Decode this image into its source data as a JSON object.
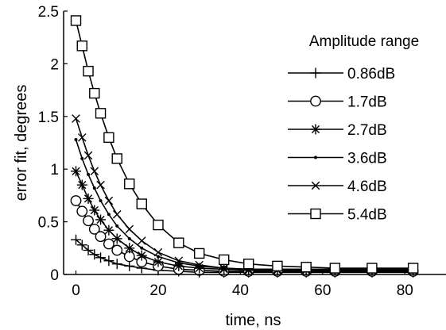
{
  "chart_data": {
    "type": "line",
    "title": "",
    "xlabel": "time, ns",
    "ylabel": "error fit, degrees",
    "xlim": [
      -3,
      90
    ],
    "ylim": [
      0,
      2.5
    ],
    "xticks": [
      0,
      20,
      40,
      60,
      80
    ],
    "yticks": [
      0,
      0.5,
      1,
      1.5,
      2,
      2.5
    ],
    "xtick_labels": [
      "0",
      "20",
      "40",
      "60",
      "80"
    ],
    "ytick_labels": [
      "0",
      "0.5",
      "1",
      "1.5",
      "2",
      "2.5"
    ],
    "grid": false,
    "legend": {
      "title": "Amplitude range",
      "placement": "top-right"
    },
    "colors": {
      "line": "#000000",
      "background": "#ffffff"
    },
    "series": [
      {
        "name": "0.86dB",
        "marker": "plus",
        "x": [
          0,
          1.5,
          3,
          4.5,
          6,
          8,
          10,
          13,
          16,
          20,
          25,
          30,
          36,
          42,
          49,
          56,
          63,
          72,
          82
        ],
        "y": [
          0.33,
          0.28,
          0.23,
          0.19,
          0.16,
          0.13,
          0.1,
          0.08,
          0.06,
          0.04,
          0.03,
          0.02,
          0.02,
          0.02,
          0.02,
          0.02,
          0.02,
          0.02,
          0.02
        ]
      },
      {
        "name": "1.7dB",
        "marker": "circle",
        "x": [
          0,
          1.5,
          3,
          4.5,
          6,
          8,
          10,
          13,
          16,
          20,
          25,
          30,
          36,
          42,
          49,
          56,
          63,
          72,
          82
        ],
        "y": [
          0.7,
          0.6,
          0.51,
          0.43,
          0.36,
          0.29,
          0.23,
          0.17,
          0.12,
          0.08,
          0.05,
          0.04,
          0.03,
          0.03,
          0.03,
          0.03,
          0.03,
          0.03,
          0.03
        ]
      },
      {
        "name": "2.7dB",
        "marker": "star",
        "x": [
          0,
          1.5,
          3,
          4.5,
          6,
          8,
          10,
          13,
          16,
          20,
          25,
          30,
          36,
          42,
          49,
          56,
          63,
          72,
          82
        ],
        "y": [
          0.98,
          0.85,
          0.72,
          0.61,
          0.52,
          0.42,
          0.34,
          0.25,
          0.18,
          0.12,
          0.08,
          0.06,
          0.05,
          0.04,
          0.04,
          0.04,
          0.04,
          0.04,
          0.04
        ]
      },
      {
        "name": "3.6dB",
        "marker": "dot",
        "x": [
          0,
          1.5,
          3,
          4.5,
          6,
          8,
          10,
          13,
          16,
          20,
          25,
          30,
          36,
          42,
          49,
          56,
          63,
          72,
          82
        ],
        "y": [
          1.28,
          1.1,
          0.95,
          0.82,
          0.7,
          0.57,
          0.46,
          0.34,
          0.25,
          0.17,
          0.11,
          0.08,
          0.06,
          0.05,
          0.05,
          0.05,
          0.05,
          0.05,
          0.05
        ]
      },
      {
        "name": "4.6dB",
        "marker": "x",
        "x": [
          0,
          1.5,
          3,
          4.5,
          6,
          8,
          10,
          13,
          16,
          20,
          25,
          30,
          36,
          42,
          49,
          56,
          63,
          72,
          82
        ],
        "y": [
          1.48,
          1.3,
          1.13,
          0.98,
          0.85,
          0.7,
          0.57,
          0.43,
          0.32,
          0.21,
          0.13,
          0.09,
          0.06,
          0.05,
          0.05,
          0.05,
          0.05,
          0.05,
          0.05
        ]
      },
      {
        "name": "5.4dB",
        "marker": "square",
        "x": [
          0,
          1.5,
          3,
          4.5,
          6,
          8,
          10,
          13,
          16,
          20,
          25,
          30,
          36,
          42,
          49,
          56,
          63,
          72,
          82
        ],
        "y": [
          2.41,
          2.17,
          1.93,
          1.72,
          1.53,
          1.3,
          1.1,
          0.86,
          0.67,
          0.47,
          0.3,
          0.2,
          0.14,
          0.1,
          0.08,
          0.07,
          0.06,
          0.06,
          0.06
        ]
      }
    ]
  }
}
